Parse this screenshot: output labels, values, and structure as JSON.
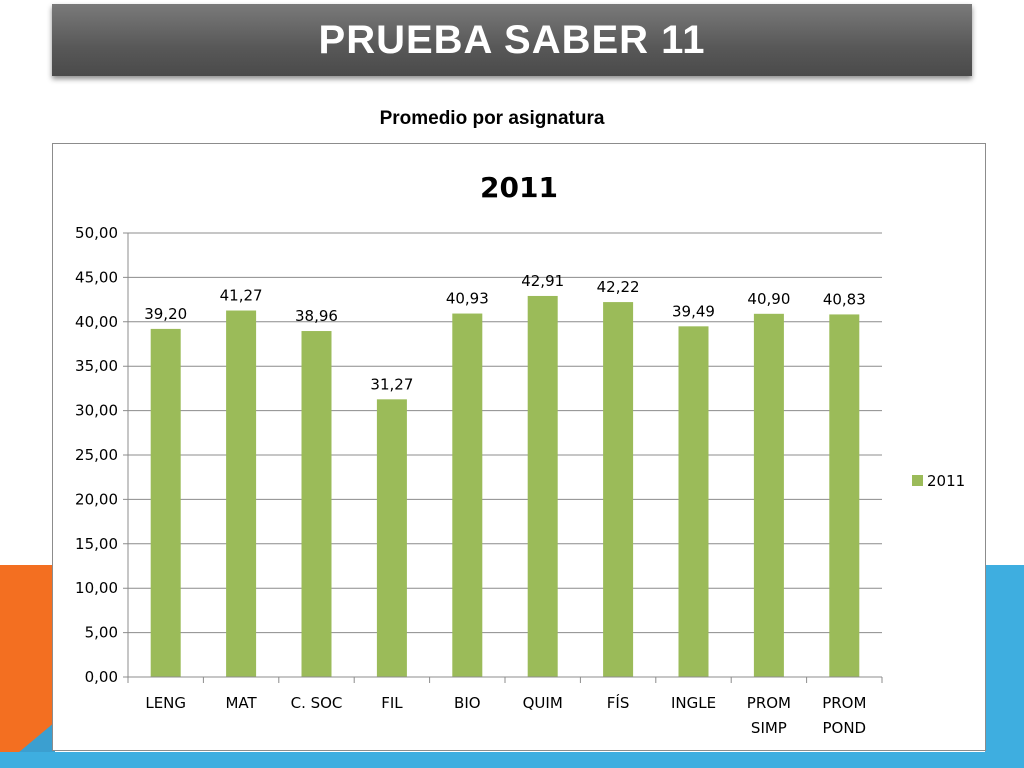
{
  "slide": {
    "title": "PRUEBA SABER 11",
    "subtitle": "Promedio por asignatura"
  },
  "colors": {
    "bar": "#9bbb59",
    "title_bar": "#5a5a5a",
    "accent_orange": "#f36f21",
    "accent_blue": "#3eaee0"
  },
  "chart_data": {
    "type": "bar",
    "title": "2011",
    "categories": [
      [
        "LENG"
      ],
      [
        "MAT"
      ],
      [
        "C. SOC"
      ],
      [
        "FIL"
      ],
      [
        "BIO"
      ],
      [
        "QUIM"
      ],
      [
        "FÍS"
      ],
      [
        "INGLE"
      ],
      [
        "PROM",
        "SIMP"
      ],
      [
        "PROM",
        "POND"
      ]
    ],
    "series": [
      {
        "name": "2011",
        "values": [
          39.2,
          41.27,
          38.96,
          31.27,
          40.93,
          42.91,
          42.22,
          39.49,
          40.9,
          40.83
        ],
        "labels": [
          "39,20",
          "41,27",
          "38,96",
          "31,27",
          "40,93",
          "42,91",
          "42,22",
          "39,49",
          "40,90",
          "40,83"
        ]
      }
    ],
    "ylim": [
      0,
      50
    ],
    "yticks": [
      "0,00",
      "5,00",
      "10,00",
      "15,00",
      "20,00",
      "25,00",
      "30,00",
      "35,00",
      "40,00",
      "45,00",
      "50,00"
    ],
    "grid": true,
    "legend": "right"
  }
}
